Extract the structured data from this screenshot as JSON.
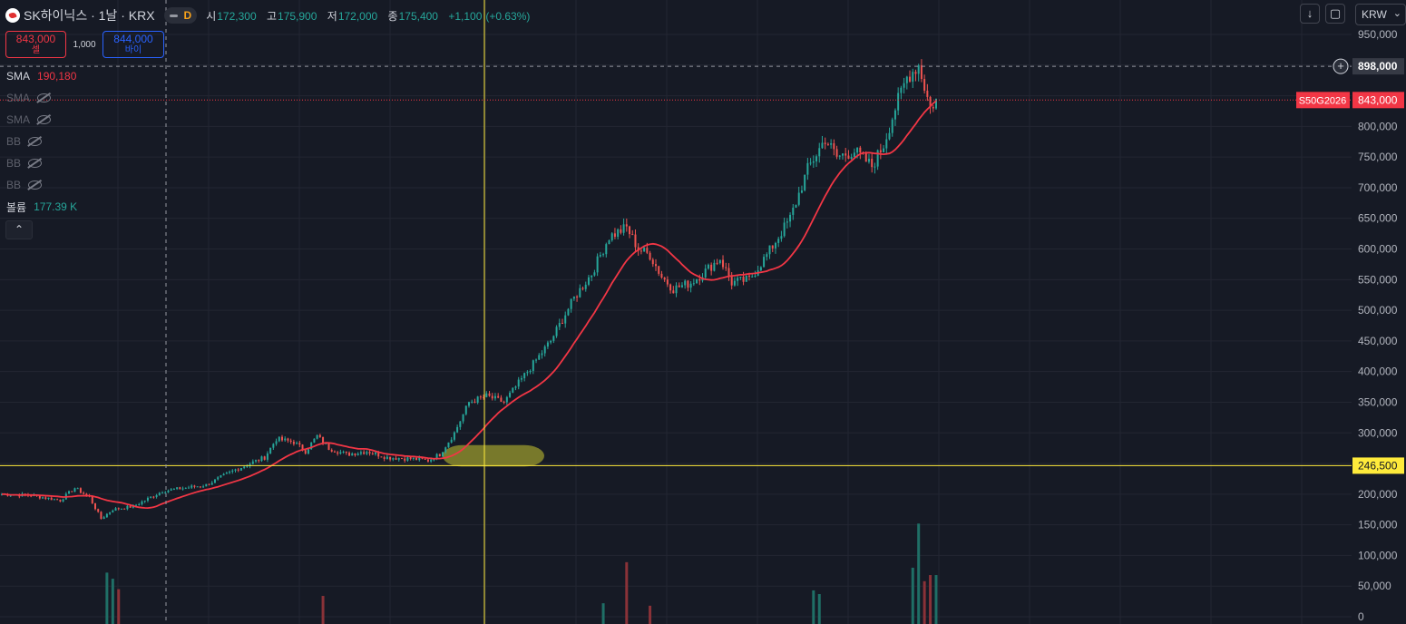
{
  "header": {
    "symbol": "SK하이닉스 · 1날 · KRX",
    "interval_badge": "D",
    "ohlc": {
      "open_label": "시",
      "open": "172,300",
      "high_label": "고",
      "high": "175,900",
      "low_label": "저",
      "low": "172,000",
      "close_label": "종",
      "close": "175,400",
      "change": "+1,100",
      "change_pct": "(+0.63%)"
    }
  },
  "trade": {
    "sell_price": "843,000",
    "sell_label": "셀",
    "spread": "1,000",
    "buy_price": "844,000",
    "buy_label": "바이"
  },
  "indicators": [
    {
      "name": "SMA",
      "value": "190,180",
      "hidden": false
    },
    {
      "name": "SMA",
      "value": "",
      "hidden": true
    },
    {
      "name": "SMA",
      "value": "",
      "hidden": true
    },
    {
      "name": "BB",
      "value": "",
      "hidden": true
    },
    {
      "name": "BB",
      "value": "",
      "hidden": true
    },
    {
      "name": "BB",
      "value": "",
      "hidden": true
    },
    {
      "name": "볼륨",
      "value": "177.39 K",
      "hidden": false
    }
  ],
  "toolbar": {
    "currency": "KRW",
    "collapse_icon": "chevron-up-icon"
  },
  "colors": {
    "background": "#161a25",
    "grid": "#232632",
    "up": "#26a69a",
    "down": "#ef5350",
    "sma": "#f23645",
    "hline": "#ffeb3b",
    "highlight": "#9a9a2e",
    "text": "#d1d4dc"
  },
  "chart_data": {
    "type": "candlestick",
    "currency": "KRW",
    "y_axis": {
      "ticks": [
        0,
        50000,
        100000,
        150000,
        200000,
        250000,
        300000,
        350000,
        400000,
        450000,
        500000,
        550000,
        600000,
        650000,
        700000,
        750000,
        800000,
        850000,
        900000,
        950000
      ],
      "tick_labels": [
        "0",
        "50,000",
        "100,000",
        "150,000",
        "200,000",
        "",
        "300,000",
        "350,000",
        "400,000",
        "450,000",
        "500,000",
        "550,000",
        "600,000",
        "650,000",
        "700,000",
        "750,000",
        "800,000",
        "",
        "",
        "950,000"
      ],
      "range": [
        0,
        960000
      ]
    },
    "sma_period": 20,
    "sma_last": 190180,
    "crosshair_price": 898000,
    "crosshair_label": "898,000",
    "last_price": 843000,
    "last_price_label": "843,000",
    "last_price_tag": "S50G2026",
    "horizontal_line": 246500,
    "horizontal_line_label": "246,500",
    "anchors": [
      [
        0,
        200000
      ],
      [
        10,
        198000
      ],
      [
        20,
        190000
      ],
      [
        25,
        210000
      ],
      [
        30,
        195000
      ],
      [
        34,
        160000
      ],
      [
        38,
        175000
      ],
      [
        45,
        180000
      ],
      [
        55,
        205000
      ],
      [
        70,
        215000
      ],
      [
        80,
        240000
      ],
      [
        90,
        260000
      ],
      [
        94,
        290000
      ],
      [
        100,
        285000
      ],
      [
        104,
        270000
      ],
      [
        108,
        295000
      ],
      [
        112,
        275000
      ],
      [
        118,
        265000
      ],
      [
        125,
        270000
      ],
      [
        132,
        260000
      ],
      [
        140,
        258000
      ],
      [
        146,
        255000
      ],
      [
        150,
        265000
      ],
      [
        155,
        300000
      ],
      [
        160,
        350000
      ],
      [
        166,
        360000
      ],
      [
        172,
        350000
      ],
      [
        180,
        400000
      ],
      [
        188,
        450000
      ],
      [
        196,
        520000
      ],
      [
        202,
        560000
      ],
      [
        208,
        620000
      ],
      [
        214,
        635000
      ],
      [
        218,
        600000
      ],
      [
        222,
        590000
      ],
      [
        226,
        555000
      ],
      [
        230,
        535000
      ],
      [
        236,
        545000
      ],
      [
        240,
        560000
      ],
      [
        246,
        585000
      ],
      [
        250,
        545000
      ],
      [
        256,
        550000
      ],
      [
        262,
        590000
      ],
      [
        270,
        650000
      ],
      [
        276,
        730000
      ],
      [
        282,
        780000
      ],
      [
        286,
        750000
      ],
      [
        292,
        760000
      ],
      [
        298,
        735000
      ],
      [
        302,
        770000
      ],
      [
        306,
        830000
      ],
      [
        310,
        880000
      ],
      [
        314,
        900000
      ],
      [
        318,
        830000
      ],
      [
        320,
        843000
      ]
    ],
    "volume_spikes": [
      [
        36,
        72000
      ],
      [
        38,
        62000
      ],
      [
        40,
        45000
      ],
      [
        110,
        34000
      ],
      [
        206,
        22000
      ],
      [
        214,
        89000
      ],
      [
        222,
        18000
      ],
      [
        278,
        43000
      ],
      [
        280,
        37000
      ],
      [
        312,
        80000
      ],
      [
        314,
        152000
      ],
      [
        316,
        58000
      ],
      [
        318,
        68000
      ],
      [
        320,
        68000
      ]
    ]
  }
}
